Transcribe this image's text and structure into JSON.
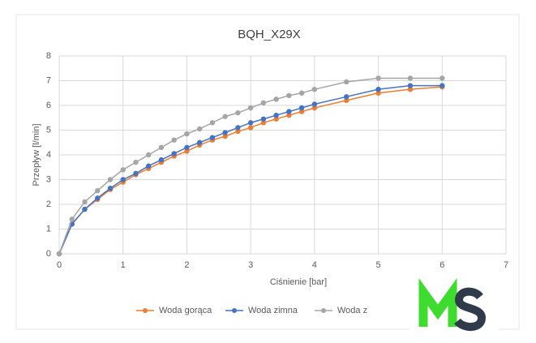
{
  "chart_data": {
    "type": "line",
    "title": "BQH_X29X",
    "x_label": "Ciśnienie [bar]",
    "y_label": "Przepływ [l/min]",
    "x": [
      0,
      0.2,
      0.4,
      0.6,
      0.8,
      1.0,
      1.2,
      1.4,
      1.6,
      1.8,
      2.0,
      2.2,
      2.4,
      2.6,
      2.8,
      3.0,
      3.2,
      3.4,
      3.6,
      3.8,
      4.0,
      4.5,
      5,
      5.5,
      6
    ],
    "series": [
      {
        "name": "Woda gorąca",
        "color": "#ed7d31",
        "values": [
          0,
          1.2,
          1.8,
          2.2,
          2.6,
          2.9,
          3.2,
          3.45,
          3.7,
          3.95,
          4.15,
          4.4,
          4.6,
          4.75,
          4.95,
          5.1,
          5.3,
          5.45,
          5.6,
          5.75,
          5.9,
          6.2,
          6.5,
          6.65,
          6.75
        ]
      },
      {
        "name": "Woda zimna",
        "color": "#4472c4",
        "values": [
          0,
          1.2,
          1.8,
          2.25,
          2.65,
          3.0,
          3.25,
          3.55,
          3.8,
          4.05,
          4.3,
          4.5,
          4.7,
          4.9,
          5.1,
          5.3,
          5.45,
          5.6,
          5.75,
          5.9,
          6.05,
          6.35,
          6.65,
          6.8,
          6.8
        ]
      },
      {
        "name": "Woda z",
        "color": "#a5a5a5",
        "values": [
          0,
          1.4,
          2.1,
          2.55,
          3.0,
          3.4,
          3.7,
          4.0,
          4.3,
          4.6,
          4.85,
          5.05,
          5.3,
          5.55,
          5.7,
          5.9,
          6.1,
          6.25,
          6.4,
          6.5,
          6.65,
          6.95,
          7.1,
          7.1,
          7.1
        ]
      }
    ],
    "xlim": [
      0,
      7
    ],
    "xticks": [
      0,
      1,
      2,
      3,
      4,
      5,
      6,
      7
    ],
    "ylim": [
      0,
      8
    ],
    "yticks": [
      0,
      1,
      2,
      3,
      4,
      5,
      6,
      7,
      8
    ],
    "grid": true,
    "legend": "bottom"
  }
}
